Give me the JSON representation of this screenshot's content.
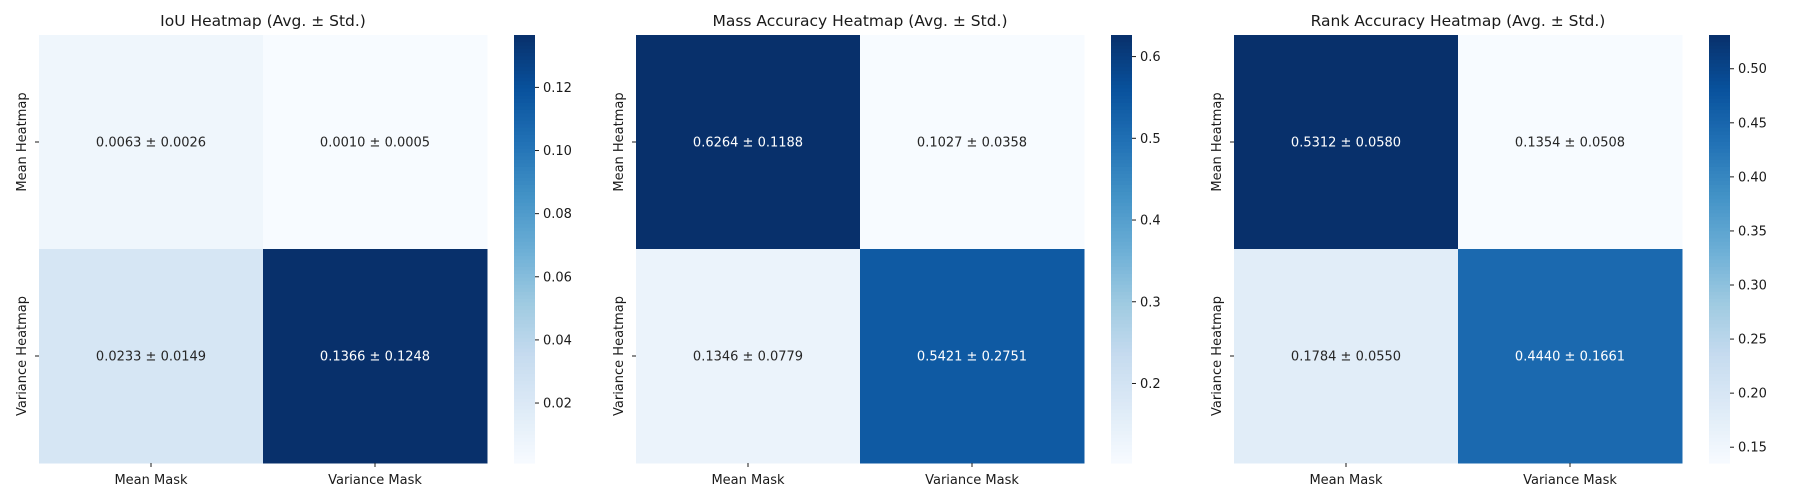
{
  "chart_data": [
    {
      "type": "heatmap",
      "title": "IoU Heatmap (Avg. ± Std.)",
      "x_labels": [
        "Mean Mask",
        "Variance Mask"
      ],
      "y_labels": [
        "Mean Heatmap",
        "Variance Heatmap"
      ],
      "values": [
        [
          0.0063,
          0.001
        ],
        [
          0.0233,
          0.1366
        ]
      ],
      "std": [
        [
          0.0026,
          0.0005
        ],
        [
          0.0149,
          0.1248
        ]
      ],
      "annotations": [
        [
          "0.0063 ± 0.0026",
          "0.0010 ± 0.0005"
        ],
        [
          "0.0233 ± 0.0149",
          "0.1366 ± 0.1248"
        ]
      ],
      "colorbar": {
        "cmap": "Blues",
        "range": [
          0.001,
          0.1366
        ],
        "ticks": [
          0.02,
          0.04,
          0.06,
          0.08,
          0.1,
          0.12
        ],
        "tick_labels": [
          "0.02",
          "0.04",
          "0.06",
          "0.08",
          "0.10",
          "0.12"
        ]
      }
    },
    {
      "type": "heatmap",
      "title": "Mass Accuracy Heatmap (Avg. ± Std.)",
      "x_labels": [
        "Mean Mask",
        "Variance Mask"
      ],
      "y_labels": [
        "Mean Heatmap",
        "Variance Heatmap"
      ],
      "values": [
        [
          0.6264,
          0.1027
        ],
        [
          0.1346,
          0.5421
        ]
      ],
      "std": [
        [
          0.1188,
          0.0358
        ],
        [
          0.0779,
          0.2751
        ]
      ],
      "annotations": [
        [
          "0.6264 ± 0.1188",
          "0.1027 ± 0.0358"
        ],
        [
          "0.1346 ± 0.0779",
          "0.5421 ± 0.2751"
        ]
      ],
      "colorbar": {
        "cmap": "Blues",
        "range": [
          0.1027,
          0.6264
        ],
        "ticks": [
          0.2,
          0.3,
          0.4,
          0.5,
          0.6
        ],
        "tick_labels": [
          "0.2",
          "0.3",
          "0.4",
          "0.5",
          "0.6"
        ]
      }
    },
    {
      "type": "heatmap",
      "title": "Rank Accuracy Heatmap (Avg. ± Std.)",
      "x_labels": [
        "Mean Mask",
        "Variance Mask"
      ],
      "y_labels": [
        "Mean Heatmap",
        "Variance Heatmap"
      ],
      "values": [
        [
          0.5312,
          0.1354
        ],
        [
          0.1784,
          0.444
        ]
      ],
      "std": [
        [
          0.058,
          0.0508
        ],
        [
          0.055,
          0.1661
        ]
      ],
      "annotations": [
        [
          "0.5312 ± 0.0580",
          "0.1354 ± 0.0508"
        ],
        [
          "0.1784 ± 0.0550",
          "0.4440 ± 0.1661"
        ]
      ],
      "colorbar": {
        "cmap": "Blues",
        "range": [
          0.1354,
          0.5312
        ],
        "ticks": [
          0.15,
          0.2,
          0.25,
          0.3,
          0.35,
          0.4,
          0.45,
          0.5
        ],
        "tick_labels": [
          "0.15",
          "0.20",
          "0.25",
          "0.30",
          "0.35",
          "0.40",
          "0.45",
          "0.50"
        ]
      }
    }
  ]
}
